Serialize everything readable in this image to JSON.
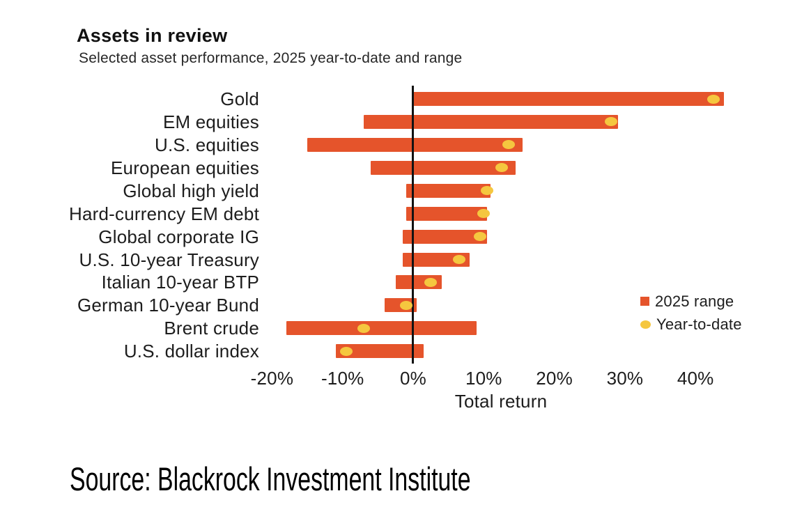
{
  "header": {
    "title": "Assets in review",
    "subtitle": "Selected asset performance, 2025 year-to-date and range"
  },
  "chart_data": {
    "type": "bar",
    "subtype": "horizontal-range-bars-with-ytd-markers",
    "title": "Assets in review",
    "subtitle": "Selected asset performance, 2025 year-to-date and range",
    "xlabel": "Total return",
    "xlim": [
      -22,
      45
    ],
    "x_tick_values": [
      -20,
      -10,
      0,
      10,
      20,
      30,
      40
    ],
    "x_tick_labels": [
      "-20%",
      "-10%",
      "0%",
      "10%",
      "20%",
      "30%",
      "40%"
    ],
    "grid": false,
    "zero_axis": true,
    "categories": [
      "Gold",
      "EM equities",
      "U.S. equities",
      "European equities",
      "Global high yield",
      "Hard-currency EM debt",
      "Global corporate IG",
      "U.S. 10-year Treasury",
      "Italian 10-year BTP",
      "German 10-year Bund",
      "Brent crude",
      "U.S. dollar index"
    ],
    "series": [
      {
        "name": "2025 range",
        "type": "range",
        "low": [
          0,
          -7,
          -15,
          -6,
          -1,
          -1,
          -1.5,
          -1.5,
          -2.5,
          -4,
          -18,
          -11
        ],
        "high": [
          44,
          29,
          15.5,
          14.5,
          11,
          10.5,
          10.5,
          8,
          4,
          0.5,
          9,
          1.5
        ]
      },
      {
        "name": "Year-to-date",
        "type": "point",
        "values": [
          42.5,
          28,
          13.5,
          12.5,
          10.5,
          10,
          9.5,
          6.5,
          2.5,
          -1,
          -7,
          -9.5
        ]
      }
    ],
    "legend": [
      {
        "label": "2025 range",
        "marker": "square",
        "color": "#E5542B"
      },
      {
        "label": "Year-to-date",
        "marker": "circle",
        "color": "#F5C73F"
      }
    ],
    "legend_position": "right-middle",
    "colors": {
      "bar": "#E5542B",
      "dot": "#F5C73F",
      "axis": "#121212"
    }
  },
  "footer": {
    "source": "Source: Blackrock Investment Institute"
  }
}
